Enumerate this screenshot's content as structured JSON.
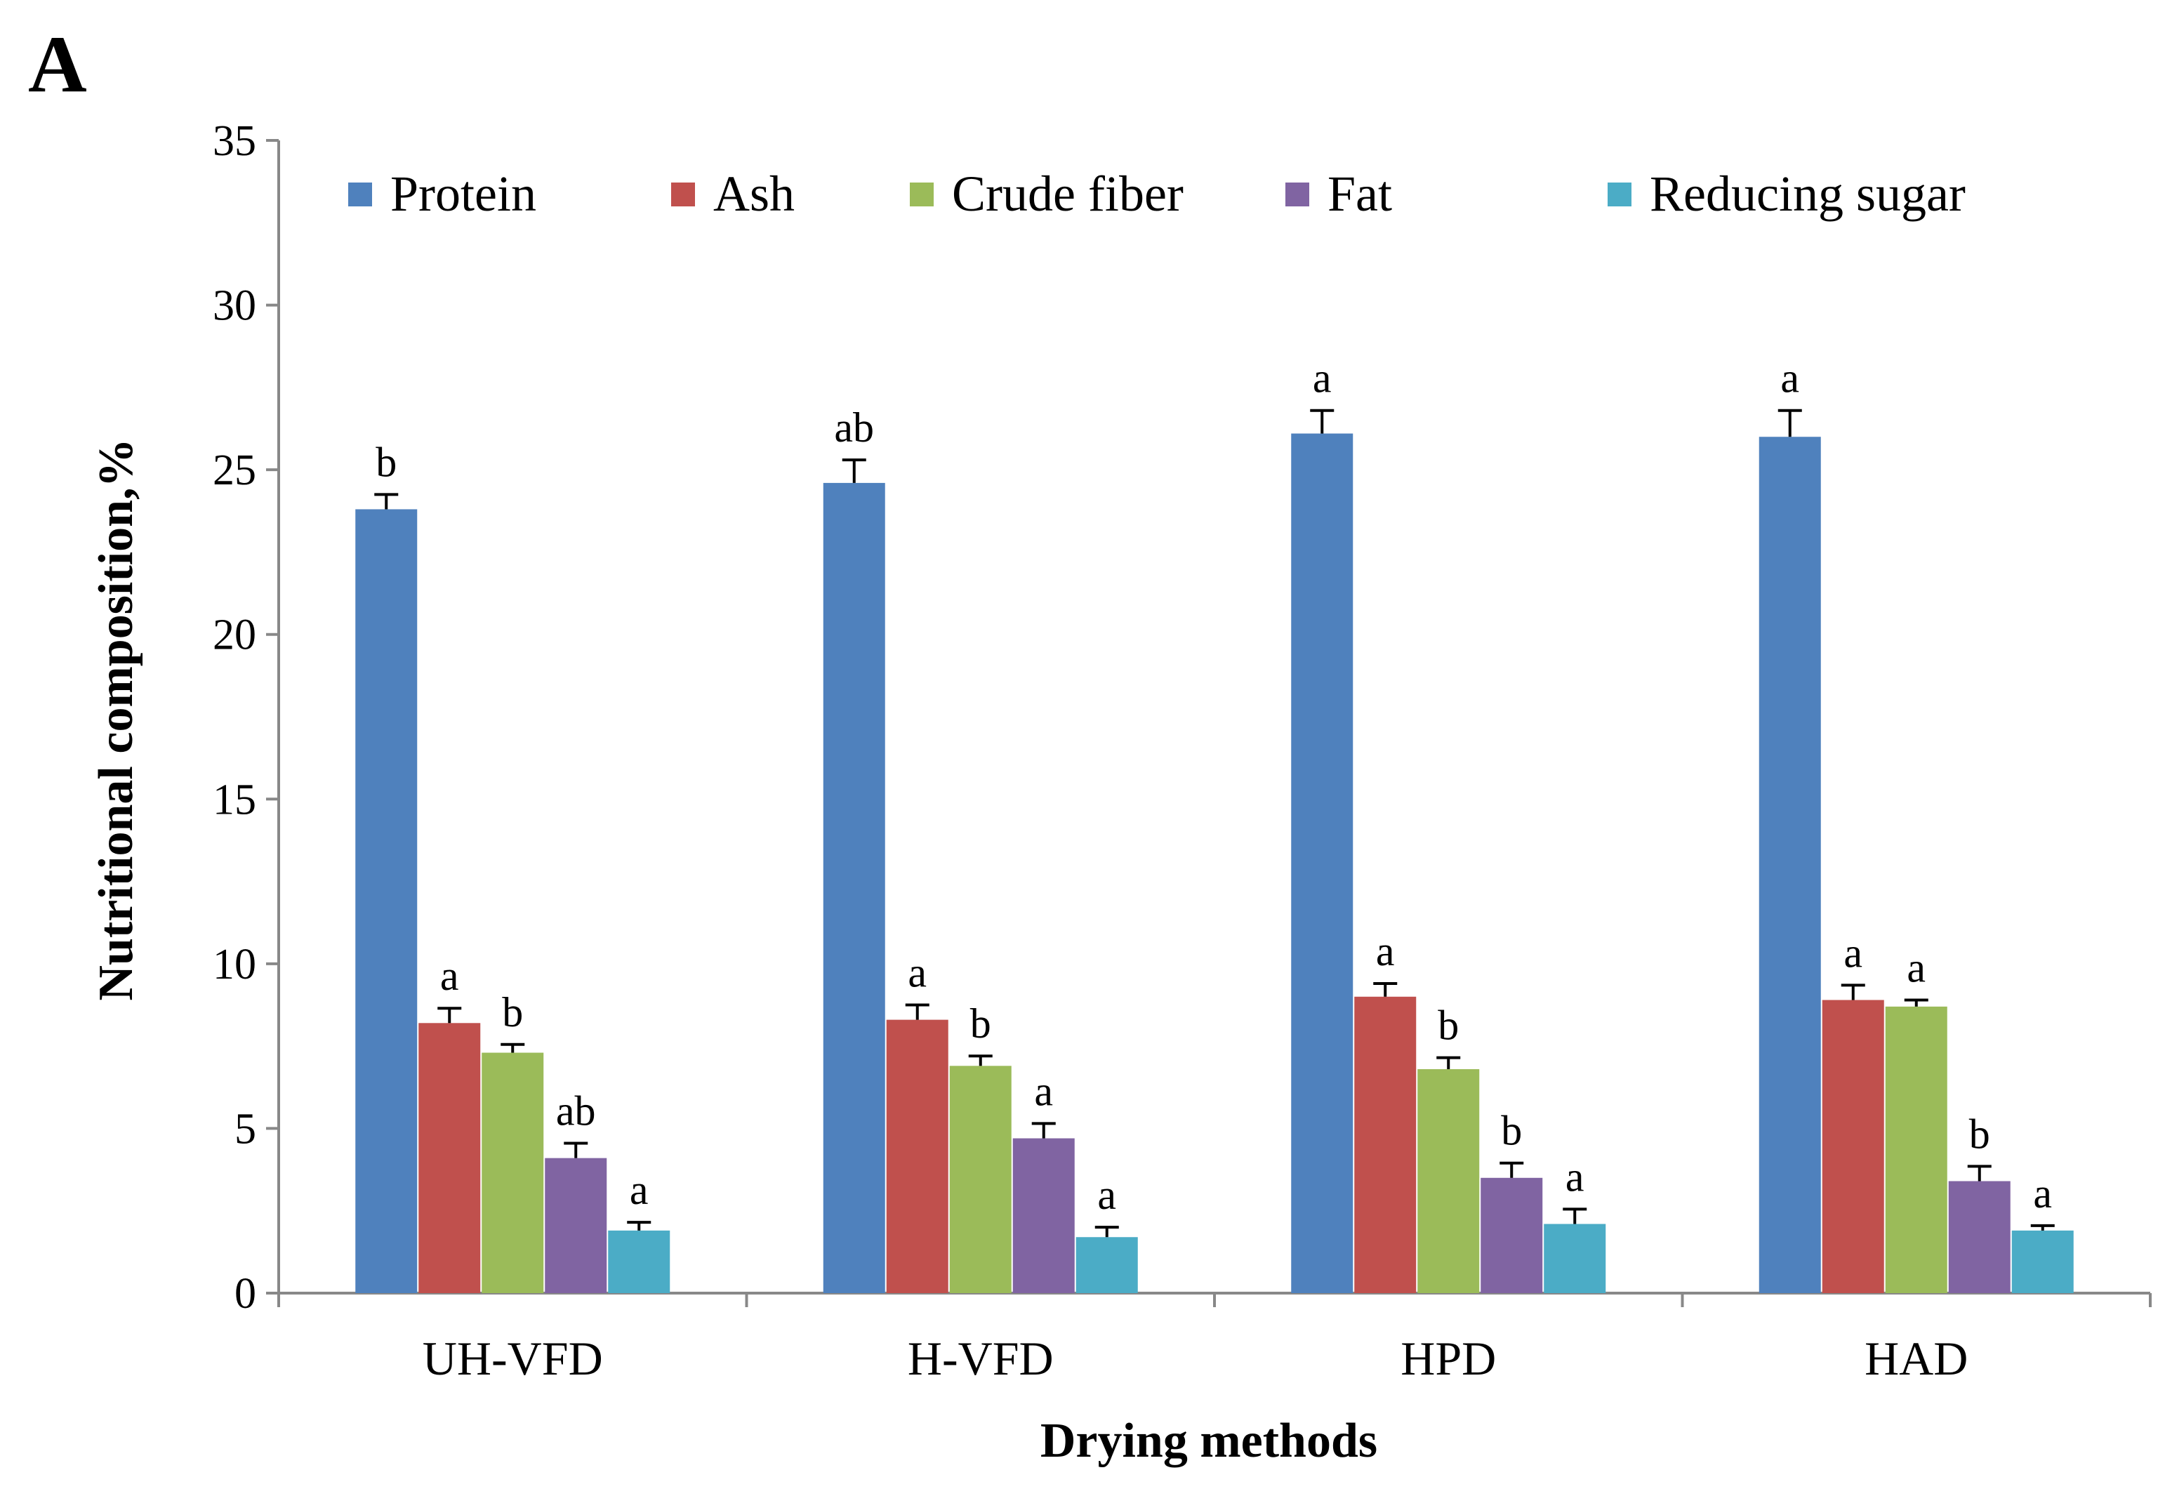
{
  "panel_label": "A",
  "chart_data": {
    "type": "bar",
    "title": "",
    "xlabel": "Drying methods",
    "ylabel": "Nutritional composition,%",
    "ylim": [
      0,
      35
    ],
    "yticks": [
      "0",
      "5",
      "10",
      "15",
      "20",
      "25",
      "30",
      "35"
    ],
    "grid": false,
    "legend_position": "top",
    "categories": [
      "UH-VFD",
      "H-VFD",
      "HPD",
      "HAD"
    ],
    "series": [
      {
        "name": "Protein",
        "color": "#4F81BD",
        "values": [
          23.8,
          24.6,
          26.1,
          26.0
        ],
        "errors": [
          0.45,
          0.7,
          0.7,
          0.8
        ],
        "labels": [
          "b",
          "ab",
          "a",
          "a"
        ]
      },
      {
        "name": "Ash",
        "color": "#C0504D",
        "values": [
          8.2,
          8.3,
          9.0,
          8.9
        ],
        "errors": [
          0.45,
          0.45,
          0.4,
          0.45
        ],
        "labels": [
          "a",
          "a",
          "a",
          "a"
        ]
      },
      {
        "name": "Crude fiber",
        "color": "#9BBB59",
        "values": [
          7.3,
          6.9,
          6.8,
          8.7
        ],
        "errors": [
          0.25,
          0.3,
          0.35,
          0.2
        ],
        "labels": [
          "b",
          "b",
          "b",
          "a"
        ]
      },
      {
        "name": "Fat",
        "color": "#8064A2",
        "values": [
          4.1,
          4.7,
          3.5,
          3.4
        ],
        "errors": [
          0.45,
          0.45,
          0.45,
          0.45
        ],
        "labels": [
          "ab",
          "a",
          "b",
          "b"
        ]
      },
      {
        "name": "Reducing sugar",
        "color": "#4BACC6",
        "values": [
          1.9,
          1.7,
          2.1,
          1.9
        ],
        "errors": [
          0.25,
          0.3,
          0.45,
          0.15
        ],
        "labels": [
          "a",
          "a",
          "a",
          "a"
        ]
      }
    ]
  }
}
